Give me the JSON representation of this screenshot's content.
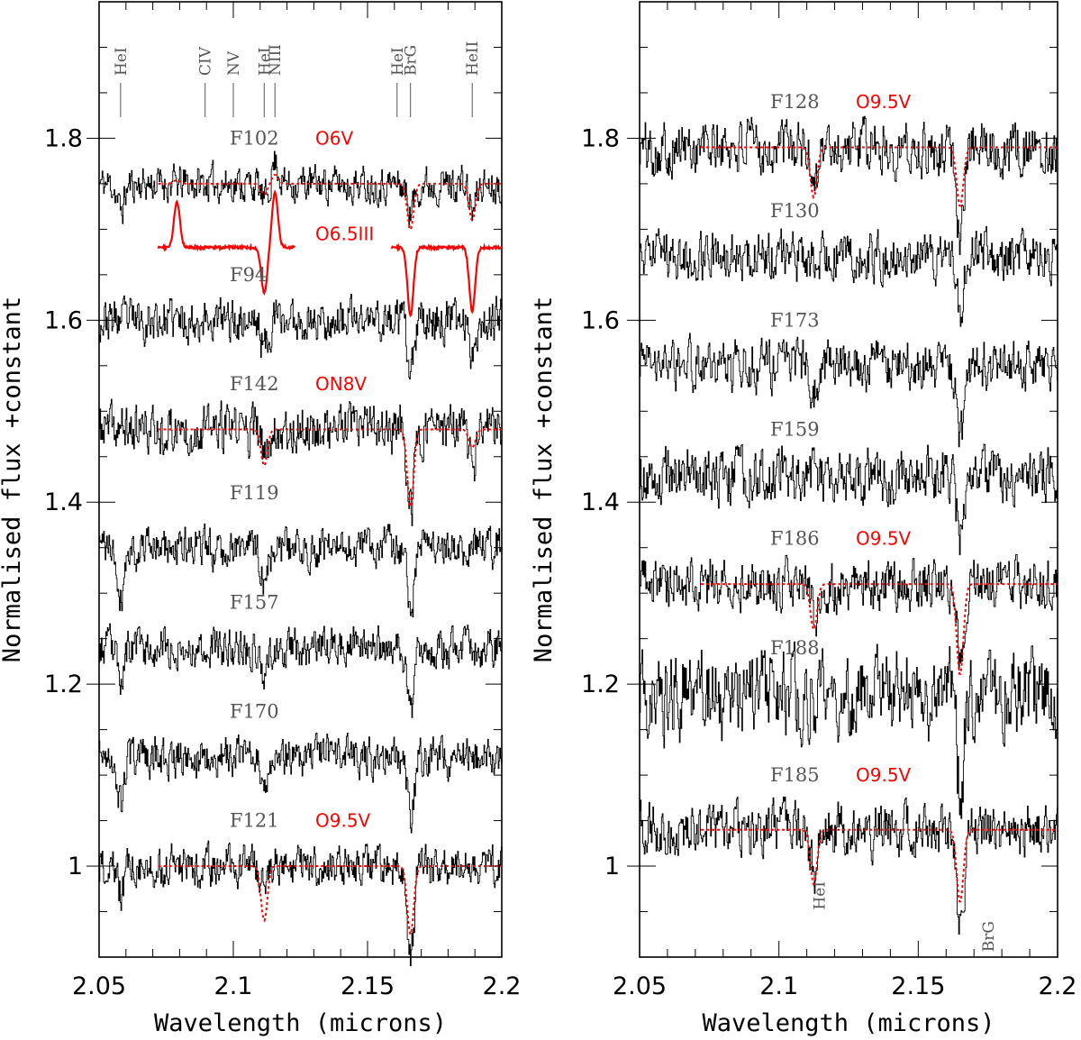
{
  "chart_data": [
    {
      "type": "line",
      "panel": "left",
      "xlabel": "Wavelength (microns)",
      "ylabel": "Normalised flux +constant",
      "xlim": [
        2.05,
        2.2
      ],
      "ylim": [
        0.9,
        1.95
      ],
      "xticks": [
        2.05,
        2.1,
        2.15,
        2.2
      ],
      "xtick_labels": [
        "2.05",
        "2.1",
        "2.15",
        "2.2"
      ],
      "yticks": [
        1,
        1.2,
        1.4,
        1.6,
        1.8
      ],
      "ytick_labels": [
        "1",
        "1.2",
        "1.4",
        "1.6",
        "1.8"
      ],
      "line_ids": [
        {
          "label": "HeI",
          "x": 2.058
        },
        {
          "label": "CIV",
          "x": 2.0895
        },
        {
          "label": "NV",
          "x": 2.1
        },
        {
          "label": "HeI",
          "x": 2.1115
        },
        {
          "label": "NIII",
          "x": 2.1155
        },
        {
          "label": "HeI",
          "x": 2.161
        },
        {
          "label": "BrG",
          "x": 2.166
        },
        {
          "label": "HeII",
          "x": 2.189
        }
      ],
      "series": [
        {
          "name": "F102",
          "offset": 1.75,
          "label_y": 1.8,
          "noise": 0.012,
          "seed": 11,
          "lines": [
            [
              2.058,
              -0.03
            ],
            [
              2.1115,
              -0.02
            ],
            [
              2.1155,
              0.025
            ],
            [
              2.166,
              -0.03
            ],
            [
              2.189,
              -0.03
            ]
          ],
          "model": {
            "label": "O6V",
            "label_y": 1.8,
            "from": 2.072,
            "lines": [
              [
                2.079,
                0.004
              ],
              [
                2.1115,
                -0.012
              ],
              [
                2.1155,
                0.01
              ],
              [
                2.166,
                -0.05
              ],
              [
                2.189,
                -0.04
              ]
            ]
          }
        },
        {
          "name": "O6.5III",
          "kind": "template",
          "offset": 1.68,
          "label": "O6.5III",
          "label_y": 1.695,
          "segments": [
            [
              2.072,
              2.123
            ],
            [
              2.159,
              2.2
            ]
          ],
          "lines": [
            [
              2.079,
              0.05
            ],
            [
              2.1115,
              -0.05
            ],
            [
              2.1155,
              0.06
            ],
            [
              2.166,
              -0.075
            ],
            [
              2.189,
              -0.07
            ]
          ]
        },
        {
          "name": "F94",
          "offset": 1.6,
          "label_y": 1.65,
          "noise": 0.014,
          "seed": 23,
          "lines": [
            [
              2.1115,
              -0.03
            ],
            [
              2.166,
              -0.06
            ],
            [
              2.189,
              -0.03
            ]
          ]
        },
        {
          "name": "F142",
          "offset": 1.48,
          "label_y": 1.53,
          "noise": 0.016,
          "seed": 37,
          "lines": [
            [
              2.1115,
              -0.03
            ],
            [
              2.166,
              -0.09
            ],
            [
              2.189,
              -0.04
            ]
          ],
          "model": {
            "label": "ON8V",
            "label_y": 1.53,
            "from": 2.072,
            "lines": [
              [
                2.1115,
                -0.04
              ],
              [
                2.166,
                -0.085
              ],
              [
                2.189,
                -0.02
              ]
            ]
          }
        },
        {
          "name": "F119",
          "offset": 1.35,
          "label_y": 1.41,
          "noise": 0.013,
          "seed": 41,
          "lines": [
            [
              2.058,
              -0.05
            ],
            [
              2.1115,
              -0.04
            ],
            [
              2.166,
              -0.07
            ]
          ]
        },
        {
          "name": "F157",
          "offset": 1.24,
          "label_y": 1.29,
          "noise": 0.013,
          "seed": 53,
          "lines": [
            [
              2.058,
              -0.03
            ],
            [
              2.1115,
              -0.03
            ],
            [
              2.166,
              -0.07
            ]
          ]
        },
        {
          "name": "F170",
          "offset": 1.12,
          "label_y": 1.17,
          "noise": 0.013,
          "seed": 67,
          "lines": [
            [
              2.058,
              -0.05
            ],
            [
              2.1115,
              -0.025
            ],
            [
              2.166,
              -0.07
            ]
          ]
        },
        {
          "name": "F121",
          "offset": 1.0,
          "label_y": 1.05,
          "noise": 0.013,
          "seed": 79,
          "lines": [
            [
              2.058,
              -0.03
            ],
            [
              2.1115,
              -0.025
            ],
            [
              2.166,
              -0.1
            ]
          ],
          "model": {
            "label": "O9.5V",
            "label_y": 1.05,
            "from": 2.072,
            "lines": [
              [
                2.1115,
                -0.06
              ],
              [
                2.166,
                -0.075
              ]
            ]
          }
        }
      ]
    },
    {
      "type": "line",
      "panel": "right",
      "xlabel": "Wavelength (microns)",
      "ylabel": "Normalised flux +constant",
      "xlim": [
        2.05,
        2.2
      ],
      "ylim": [
        0.9,
        1.95
      ],
      "xticks": [
        2.05,
        2.1,
        2.15,
        2.2
      ],
      "xtick_labels": [
        "2.05",
        "2.1",
        "2.15",
        "2.2"
      ],
      "yticks": [
        1,
        1.2,
        1.4,
        1.6,
        1.8
      ],
      "ytick_labels": [
        "1",
        "1.2",
        "1.4",
        "1.6",
        "1.8"
      ],
      "line_ids": [
        {
          "label": "HeI",
          "x": 2.1125
        },
        {
          "label": "BrG",
          "x": 2.166
        }
      ],
      "series": [
        {
          "name": "F128",
          "offset": 1.79,
          "label_y": 1.84,
          "noise": 0.018,
          "seed": 101,
          "lines": [
            [
              2.1125,
              -0.03
            ],
            [
              2.165,
              -0.09
            ]
          ],
          "model": {
            "label": "O9.5V",
            "label_y": 1.84,
            "from": 2.072,
            "lines": [
              [
                2.1125,
                -0.055
              ],
              [
                2.165,
                -0.065
              ]
            ]
          }
        },
        {
          "name": "F130",
          "offset": 1.67,
          "label_y": 1.72,
          "noise": 0.016,
          "seed": 113,
          "lines": [
            [
              2.165,
              -0.07
            ]
          ]
        },
        {
          "name": "F173",
          "offset": 1.55,
          "label_y": 1.6,
          "noise": 0.016,
          "seed": 127,
          "lines": [
            [
              2.1125,
              -0.025
            ],
            [
              2.165,
              -0.08
            ]
          ]
        },
        {
          "name": "F159",
          "offset": 1.43,
          "label_y": 1.48,
          "noise": 0.018,
          "seed": 131,
          "lines": [
            [
              2.165,
              -0.07
            ]
          ]
        },
        {
          "name": "F186",
          "offset": 1.31,
          "label_y": 1.36,
          "noise": 0.017,
          "seed": 149,
          "lines": [
            [
              2.1125,
              -0.03
            ],
            [
              2.165,
              -0.08
            ]
          ],
          "model": {
            "label": "O9.5V",
            "label_y": 1.36,
            "from": 2.072,
            "lines": [
              [
                2.1125,
                -0.05
              ],
              [
                2.165,
                -0.1
              ]
            ]
          }
        },
        {
          "name": "F188",
          "offset": 1.19,
          "label_y": 1.24,
          "noise": 0.028,
          "seed": 157,
          "lines": [
            [
              2.165,
              -0.1
            ]
          ]
        },
        {
          "name": "F185",
          "offset": 1.04,
          "label_y": 1.1,
          "noise": 0.017,
          "seed": 167,
          "lines": [
            [
              2.1125,
              -0.05
            ],
            [
              2.165,
              -0.11
            ]
          ],
          "model": {
            "label": "O9.5V",
            "label_y": 1.1,
            "from": 2.072,
            "lines": [
              [
                2.1125,
                -0.06
              ],
              [
                2.165,
                -0.08
              ]
            ]
          }
        }
      ]
    }
  ],
  "colors": {
    "observed": "#000000",
    "model": "#ff0000",
    "label_gray": "#555555"
  }
}
